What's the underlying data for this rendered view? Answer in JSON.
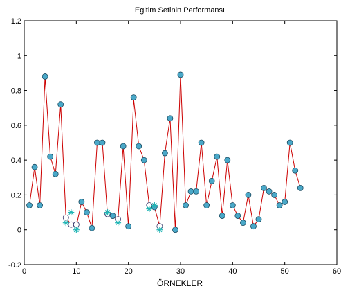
{
  "chart_data": {
    "type": "line",
    "title": "Egitim Setinin Performansı",
    "xlabel": "ÖRNEKLER",
    "ylabel": "",
    "xlim": [
      0,
      60
    ],
    "ylim": [
      -0.2,
      1.2
    ],
    "x_ticks": [
      "0",
      "10",
      "20",
      "30",
      "40",
      "50",
      "60"
    ],
    "y_ticks": [
      "-0.2",
      "0",
      "0.2",
      "0.4",
      "0.6",
      "0.8",
      "1",
      "1.2"
    ],
    "x_tick_values": [
      0,
      10,
      20,
      30,
      40,
      50,
      60
    ],
    "y_tick_values": [
      -0.2,
      0,
      0.2,
      0.4,
      0.6,
      0.8,
      1.0,
      1.2
    ],
    "grid": false,
    "series": [
      {
        "style": "red line with small dot markers",
        "color": "#cc0000",
        "x": [
          1,
          2,
          3,
          4,
          5,
          6,
          7,
          8,
          9,
          10,
          11,
          12,
          13,
          14,
          15,
          16,
          17,
          18,
          19,
          20,
          21,
          22,
          23,
          24,
          25,
          26,
          27,
          28,
          29,
          30,
          31,
          32,
          33,
          34,
          35,
          36,
          37,
          38,
          39,
          40,
          41,
          42,
          43,
          44,
          45,
          46,
          47,
          48,
          49,
          50,
          51,
          52,
          53
        ],
        "values": [
          0.14,
          0.36,
          0.14,
          0.88,
          0.42,
          0.32,
          0.72,
          0.07,
          0.03,
          0.02,
          0.16,
          0.1,
          0.01,
          0.5,
          0.5,
          0.08,
          0.08,
          0.06,
          0.48,
          0.02,
          0.75,
          0.48,
          0.4,
          0.14,
          0.13,
          0.02,
          0.44,
          0.64,
          0.0,
          0.89,
          0.14,
          0.22,
          0.22,
          0.5,
          0.14,
          0.28,
          0.42,
          0.08,
          0.4,
          0.14,
          0.08,
          0.04,
          0.2,
          0.02,
          0.06,
          0.24,
          0.22,
          0.2,
          0.14,
          0.16,
          0.5,
          0.34,
          0.24
        ]
      },
      {
        "style": "circle markers",
        "color": "#4aa8c8",
        "x": [
          1,
          2,
          3,
          4,
          5,
          6,
          7,
          8,
          9,
          10,
          11,
          12,
          13,
          14,
          15,
          16,
          17,
          18,
          19,
          20,
          21,
          22,
          23,
          24,
          25,
          26,
          27,
          28,
          29,
          30,
          31,
          32,
          33,
          34,
          35,
          36,
          37,
          38,
          39,
          40,
          41,
          42,
          43,
          44,
          45,
          46,
          47,
          48,
          49,
          50,
          51,
          52,
          53
        ],
        "values": [
          0.14,
          0.36,
          0.14,
          0.88,
          0.42,
          0.32,
          0.72,
          0.07,
          0.03,
          0.03,
          0.16,
          0.1,
          0.01,
          0.5,
          0.5,
          0.09,
          0.08,
          0.06,
          0.48,
          0.02,
          0.76,
          0.48,
          0.4,
          0.14,
          0.13,
          0.02,
          0.44,
          0.64,
          0.0,
          0.89,
          0.14,
          0.22,
          0.22,
          0.5,
          0.14,
          0.28,
          0.42,
          0.08,
          0.4,
          0.14,
          0.08,
          0.04,
          0.2,
          0.02,
          0.06,
          0.24,
          0.22,
          0.2,
          0.14,
          0.16,
          0.5,
          0.34,
          0.24
        ],
        "hollow_indices": [
          7,
          8,
          9,
          15,
          17,
          23,
          25
        ]
      },
      {
        "style": "star markers",
        "color": "#22b5b5",
        "x": [
          8,
          9,
          10,
          16,
          18,
          24,
          25,
          26
        ],
        "values": [
          0.04,
          0.1,
          0.0,
          0.1,
          0.04,
          0.12,
          0.14,
          0.0
        ]
      }
    ]
  }
}
